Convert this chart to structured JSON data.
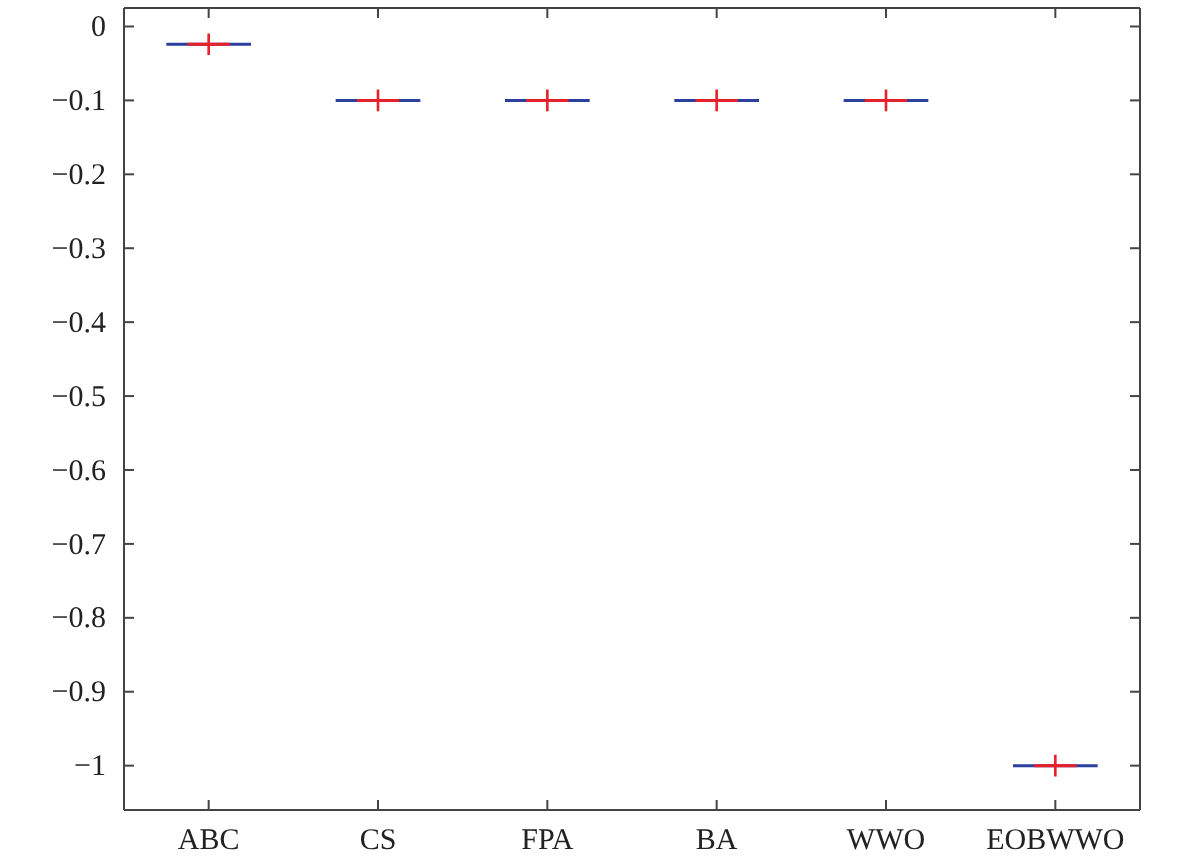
{
  "chart_data": {
    "type": "box",
    "categories": [
      "ABC",
      "CS",
      "FPA",
      "BA",
      "WWO",
      "EOBWWO"
    ],
    "boxes": [
      {
        "low": -0.024,
        "q1": -0.024,
        "median": -0.024,
        "q3": -0.024,
        "high": -0.024,
        "mean": -0.024
      },
      {
        "low": -0.1,
        "q1": -0.1,
        "median": -0.1,
        "q3": -0.1,
        "high": -0.1,
        "mean": -0.1
      },
      {
        "low": -0.1,
        "q1": -0.1,
        "median": -0.1,
        "q3": -0.1,
        "high": -0.1,
        "mean": -0.1
      },
      {
        "low": -0.1,
        "q1": -0.1,
        "median": -0.1,
        "q3": -0.1,
        "high": -0.1,
        "mean": -0.1
      },
      {
        "low": -0.1,
        "q1": -0.1,
        "median": -0.1,
        "q3": -0.1,
        "high": -0.1,
        "mean": -0.1
      },
      {
        "low": -1,
        "q1": -1,
        "median": -1,
        "q3": -1,
        "high": -1,
        "mean": -1
      }
    ],
    "color": "#2b3f9e",
    "marker": "cross",
    "ylim": [
      -1.06,
      0.025
    ],
    "yticks": [
      0,
      -0.1,
      -0.2,
      -0.3,
      -0.4,
      -0.5,
      -0.6,
      -0.7,
      -0.8,
      -0.9,
      -1
    ],
    "grid": false
  }
}
